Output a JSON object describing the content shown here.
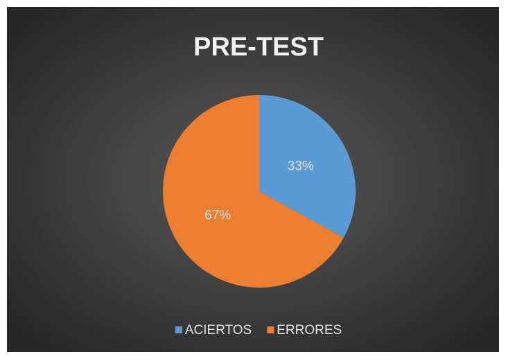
{
  "chart_data": {
    "type": "pie",
    "title": "PRE-TEST",
    "categories": [
      "ACIERTOS",
      "ERRORES"
    ],
    "values": [
      33,
      67
    ],
    "value_labels": [
      "33%",
      "67%"
    ],
    "colors": [
      "#5b9bd5",
      "#ed7d31"
    ],
    "legend": "bottom"
  }
}
